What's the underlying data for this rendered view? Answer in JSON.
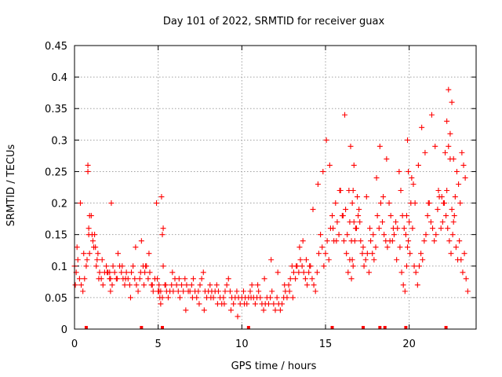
{
  "chart_data": {
    "type": "scatter",
    "title": "Day 101 of 2022, SRMTID for receiver guax",
    "xlabel": "GPS time / hours",
    "ylabel": "SRMTID / TECUs",
    "xlim": [
      0,
      24
    ],
    "ylim": [
      0,
      0.45
    ],
    "xticks": [
      0,
      5,
      10,
      15,
      20
    ],
    "xtick_labels": [
      "0",
      "5",
      "10",
      "15",
      "20"
    ],
    "yticks": [
      0,
      0.05,
      0.1,
      0.15,
      0.2,
      0.25,
      0.3,
      0.35,
      0.4,
      0.45
    ],
    "ytick_labels": [
      "0",
      "0.05",
      "0.1",
      "0.15",
      "0.2",
      "0.25",
      "0.3",
      "0.35",
      "0.4",
      "0.45"
    ],
    "grid": true,
    "marker": "+",
    "color": "#ff0000",
    "series": [
      {
        "name": "SRMTID",
        "x": [
          0.0,
          0.1,
          0.2,
          0.3,
          0.4,
          0.5,
          0.6,
          0.7,
          0.8,
          0.9,
          1.0,
          1.1,
          1.2,
          1.3,
          1.4,
          1.5,
          1.6,
          1.7,
          1.8,
          1.9,
          2.0,
          2.1,
          2.2,
          2.3,
          2.4,
          2.5,
          2.6,
          2.7,
          2.8,
          2.9,
          3.0,
          3.1,
          3.2,
          3.3,
          3.4,
          3.5,
          3.6,
          3.7,
          3.8,
          3.9,
          4.0,
          4.1,
          4.2,
          4.3,
          4.4,
          4.5,
          4.6,
          4.7,
          4.8,
          4.9,
          5.0,
          5.1,
          5.2,
          5.3,
          5.4,
          5.5,
          5.6,
          5.7,
          5.8,
          5.9,
          6.0,
          6.1,
          6.2,
          6.3,
          6.4,
          6.5,
          6.6,
          6.7,
          6.8,
          6.9,
          7.0,
          7.1,
          7.2,
          7.3,
          7.4,
          7.5,
          7.6,
          7.7,
          7.8,
          7.9,
          8.0,
          8.1,
          8.2,
          8.3,
          8.4,
          8.5,
          8.6,
          8.7,
          8.8,
          8.9,
          9.0,
          9.1,
          9.2,
          9.3,
          9.4,
          9.5,
          9.6,
          9.7,
          9.8,
          9.9,
          10.0,
          10.1,
          10.2,
          10.3,
          10.4,
          10.5,
          10.6,
          10.7,
          10.8,
          10.9,
          11.0,
          11.1,
          11.2,
          11.3,
          11.4,
          11.5,
          11.6,
          11.7,
          11.8,
          11.9,
          12.0,
          12.1,
          12.2,
          12.3,
          12.4,
          12.5,
          12.6,
          12.7,
          12.8,
          12.9,
          13.0,
          13.1,
          13.2,
          13.3,
          13.4,
          13.5,
          13.6,
          13.7,
          13.8,
          13.9,
          14.0,
          14.1,
          14.2,
          14.3,
          14.4,
          14.5,
          14.6,
          14.7,
          14.8,
          14.9,
          15.0,
          15.1,
          15.2,
          15.3,
          15.4,
          15.5,
          15.6,
          15.7,
          15.8,
          15.9,
          16.0,
          16.1,
          16.2,
          16.3,
          16.4,
          16.5,
          16.6,
          16.7,
          16.8,
          16.9,
          17.0,
          17.1,
          17.2,
          17.3,
          17.4,
          17.5,
          17.6,
          17.7,
          17.8,
          17.9,
          18.0,
          18.1,
          18.2,
          18.3,
          18.4,
          18.5,
          18.6,
          18.7,
          18.8,
          18.9,
          19.0,
          19.1,
          19.2,
          19.3,
          19.4,
          19.5,
          19.6,
          19.7,
          19.8,
          19.9,
          20.0,
          20.1,
          20.2,
          20.3,
          20.4,
          20.5,
          20.6,
          20.7,
          20.8,
          20.9,
          21.0,
          21.1,
          21.2,
          21.3,
          21.4,
          21.5,
          21.6,
          21.7,
          21.8,
          21.9,
          22.0,
          22.1,
          22.2,
          22.3,
          22.4,
          22.5,
          22.6,
          22.7,
          22.8,
          22.9,
          23.0,
          23.1,
          23.2,
          23.3,
          23.4,
          23.5,
          0.05,
          0.15,
          0.35,
          0.55,
          0.75,
          0.85,
          1.05,
          1.25,
          1.45,
          1.65,
          1.95,
          2.15,
          2.25,
          2.55,
          2.85,
          3.05,
          3.35,
          3.65,
          3.95,
          4.15,
          4.25,
          4.45,
          4.65,
          4.95,
          5.05,
          5.15,
          5.25,
          5.45,
          5.85,
          6.25,
          6.65,
          7.05,
          7.45,
          7.75,
          8.15,
          8.55,
          8.95,
          9.35,
          9.75,
          10.15,
          10.55,
          10.95,
          11.35,
          11.75,
          12.15,
          12.55,
          12.85,
          13.05,
          13.25,
          13.45,
          13.65,
          13.85,
          14.05,
          14.25,
          14.55,
          14.85,
          15.05,
          15.25,
          15.45,
          15.65,
          15.85,
          16.05,
          16.15,
          16.25,
          16.35,
          16.45,
          16.55,
          16.65,
          16.75,
          16.85,
          16.95,
          17.05,
          17.25,
          17.45,
          17.65,
          17.85,
          18.05,
          18.25,
          18.45,
          18.65,
          18.85,
          19.05,
          19.25,
          19.45,
          19.55,
          19.65,
          19.75,
          19.85,
          19.95,
          20.05,
          20.15,
          20.35,
          20.55,
          20.75,
          20.95,
          21.15,
          21.35,
          21.55,
          21.75,
          21.95,
          22.05,
          22.15,
          22.25,
          22.35,
          22.45,
          22.55,
          22.65,
          22.75,
          22.85,
          22.95,
          23.05,
          23.15,
          23.25,
          23.35,
          0.8,
          0.85,
          0.9,
          1.15,
          1.35,
          2.1,
          2.15,
          5.05,
          5.15,
          5.25,
          5.3,
          16.45,
          16.55,
          16.6,
          16.65,
          16.7,
          19.85,
          19.9,
          19.95,
          20.25,
          22.25,
          22.35,
          22.45,
          22.55,
          22.65
        ],
        "y": [
          0.1,
          0.09,
          0.11,
          0.08,
          0.07,
          0.06,
          0.08,
          0.1,
          0.26,
          0.12,
          0.18,
          0.14,
          0.15,
          0.1,
          0.12,
          0.09,
          0.08,
          0.07,
          0.09,
          0.1,
          0.09,
          0.08,
          0.2,
          0.1,
          0.09,
          0.08,
          0.12,
          0.1,
          0.09,
          0.08,
          0.07,
          0.09,
          0.08,
          0.07,
          0.09,
          0.1,
          0.08,
          0.07,
          0.06,
          0.08,
          0.14,
          0.1,
          0.09,
          0.1,
          0.08,
          0.09,
          0.07,
          0.06,
          0.08,
          0.2,
          0.06,
          0.05,
          0.21,
          0.1,
          0.07,
          0.06,
          0.05,
          0.06,
          0.07,
          0.06,
          0.08,
          0.07,
          0.06,
          0.05,
          0.07,
          0.06,
          0.08,
          0.07,
          0.06,
          0.06,
          0.07,
          0.08,
          0.06,
          0.05,
          0.06,
          0.07,
          0.08,
          0.09,
          0.06,
          0.05,
          0.06,
          0.07,
          0.06,
          0.05,
          0.06,
          0.07,
          0.06,
          0.05,
          0.04,
          0.05,
          0.06,
          0.07,
          0.08,
          0.06,
          0.05,
          0.04,
          0.05,
          0.06,
          0.05,
          0.04,
          0.05,
          0.06,
          0.05,
          0.04,
          0.05,
          0.06,
          0.07,
          0.05,
          0.04,
          0.05,
          0.06,
          0.05,
          0.04,
          0.03,
          0.04,
          0.05,
          0.04,
          0.05,
          0.06,
          0.04,
          0.03,
          0.05,
          0.04,
          0.03,
          0.04,
          0.05,
          0.06,
          0.05,
          0.07,
          0.08,
          0.1,
          0.09,
          0.08,
          0.1,
          0.09,
          0.11,
          0.1,
          0.09,
          0.08,
          0.07,
          0.09,
          0.1,
          0.08,
          0.07,
          0.06,
          0.09,
          0.12,
          0.15,
          0.13,
          0.1,
          0.12,
          0.14,
          0.11,
          0.16,
          0.18,
          0.14,
          0.2,
          0.17,
          0.15,
          0.22,
          0.18,
          0.14,
          0.19,
          0.15,
          0.22,
          0.29,
          0.2,
          0.17,
          0.16,
          0.21,
          0.19,
          0.14,
          0.12,
          0.1,
          0.11,
          0.12,
          0.09,
          0.14,
          0.12,
          0.11,
          0.13,
          0.18,
          0.16,
          0.2,
          0.17,
          0.15,
          0.14,
          0.13,
          0.2,
          0.18,
          0.14,
          0.15,
          0.17,
          0.16,
          0.25,
          0.22,
          0.18,
          0.16,
          0.15,
          0.13,
          0.17,
          0.2,
          0.16,
          0.1,
          0.09,
          0.07,
          0.1,
          0.12,
          0.11,
          0.14,
          0.15,
          0.18,
          0.2,
          0.17,
          0.16,
          0.14,
          0.15,
          0.19,
          0.21,
          0.16,
          0.17,
          0.2,
          0.18,
          0.16,
          0.14,
          0.12,
          0.15,
          0.18,
          0.13,
          0.11,
          0.14,
          0.11,
          0.09,
          0.12,
          0.08,
          0.06,
          0.07,
          0.13,
          0.2,
          0.12,
          0.11,
          0.16,
          0.15,
          0.13,
          0.08,
          0.11,
          0.09,
          0.06,
          0.07,
          0.08,
          0.1,
          0.08,
          0.05,
          0.13,
          0.09,
          0.07,
          0.1,
          0.12,
          0.07,
          0.08,
          0.06,
          0.04,
          0.05,
          0.07,
          0.09,
          0.08,
          0.03,
          0.05,
          0.04,
          0.03,
          0.05,
          0.04,
          0.04,
          0.03,
          0.02,
          0.04,
          0.05,
          0.07,
          0.08,
          0.11,
          0.09,
          0.07,
          0.06,
          0.05,
          0.1,
          0.13,
          0.14,
          0.11,
          0.1,
          0.19,
          0.23,
          0.25,
          0.3,
          0.26,
          0.16,
          0.14,
          0.22,
          0.18,
          0.34,
          0.12,
          0.09,
          0.11,
          0.08,
          0.1,
          0.14,
          0.16,
          0.18,
          0.17,
          0.13,
          0.21,
          0.16,
          0.15,
          0.24,
          0.29,
          0.21,
          0.27,
          0.14,
          0.16,
          0.11,
          0.13,
          0.09,
          0.07,
          0.06,
          0.1,
          0.14,
          0.12,
          0.24,
          0.2,
          0.26,
          0.32,
          0.28,
          0.2,
          0.34,
          0.29,
          0.22,
          0.21,
          0.2,
          0.28,
          0.22,
          0.29,
          0.27,
          0.19,
          0.17,
          0.21,
          0.25,
          0.23,
          0.2,
          0.28,
          0.26,
          0.24,
          0.25,
          0.15,
          0.18,
          0.13,
          0.11,
          0.09,
          0.08,
          0.07,
          0.06,
          0.15,
          0.16,
          0.17,
          0.14,
          0.11,
          0.22,
          0.26,
          0.18,
          0.3,
          0.25,
          0.23,
          0.33,
          0.38,
          0.31,
          0.36,
          0.27
        ],
        "labels": [],
        "note": "dense cloud of '+' markers; values estimated from the plot"
      }
    ],
    "axis_markers": [
      0.7,
      4.0,
      5.25,
      10.4,
      15.4,
      17.25,
      18.25,
      18.55,
      19.8,
      22.2
    ]
  }
}
